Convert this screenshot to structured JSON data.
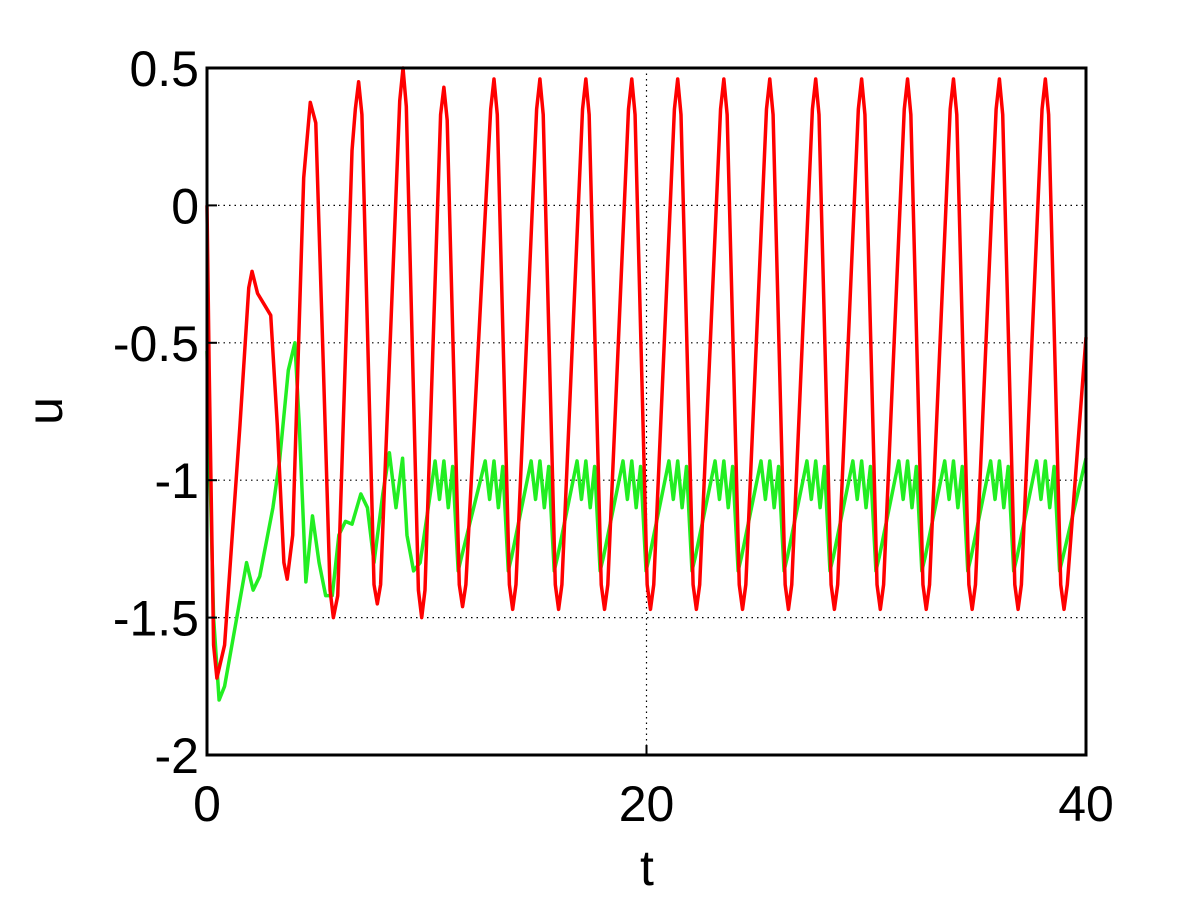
{
  "chart_data": {
    "type": "line",
    "xlabel": "t",
    "ylabel": "u",
    "xlim": [
      0,
      40
    ],
    "ylim": [
      -2,
      0.5
    ],
    "xticks": [
      0,
      20,
      40
    ],
    "yticks": [
      0.5,
      0,
      -0.5,
      -1,
      -1.5,
      -2
    ],
    "grid": true,
    "series": [
      {
        "color": "#ff0000",
        "x": [
          0,
          0.1,
          0.3,
          0.45,
          0.8,
          1.5,
          1.9,
          2.05,
          2.3,
          2.6,
          2.9,
          3.2,
          3.5,
          3.65,
          3.9,
          4.4,
          4.7,
          4.95,
          5.3,
          5.6,
          5.75,
          5.95,
          6.6,
          6.75,
          6.9,
          7.05,
          7.6,
          7.75,
          7.9,
          8.77,
          8.92,
          9.07,
          9.62,
          9.77,
          9.92,
          10.63,
          10.78,
          10.93,
          11.48,
          11.63,
          11.78,
          12.91,
          13.06,
          13.21,
          13.76,
          13.91,
          14.06,
          15.0,
          15.15,
          15.3,
          15.85,
          16.0,
          16.15,
          17.09,
          17.24,
          17.39,
          17.94,
          18.09,
          18.24,
          19.18,
          19.33,
          19.48,
          20.03,
          20.18,
          20.33,
          21.27,
          21.42,
          21.57,
          22.12,
          22.27,
          22.42,
          23.37,
          23.52,
          23.67,
          24.22,
          24.37,
          24.52,
          25.46,
          25.61,
          25.76,
          26.31,
          26.46,
          26.61,
          27.55,
          27.7,
          27.85,
          28.4,
          28.55,
          28.7,
          29.64,
          29.79,
          29.94,
          30.49,
          30.64,
          30.79,
          31.73,
          31.88,
          32.03,
          32.58,
          32.73,
          32.88,
          33.82,
          33.97,
          34.12,
          34.67,
          34.82,
          34.97,
          35.91,
          36.06,
          36.21,
          36.76,
          36.91,
          37.06,
          38.0,
          38.15,
          38.3,
          38.85,
          39.0,
          39.15,
          40
        ],
        "values": [
          0,
          -0.6,
          -1.6,
          -1.72,
          -1.6,
          -0.8,
          -0.3,
          -0.24,
          -0.32,
          -0.36,
          -0.4,
          -0.8,
          -1.3,
          -1.36,
          -1.2,
          0.1,
          0.375,
          0.3,
          -0.6,
          -1.4,
          -1.5,
          -1.42,
          0.2,
          0.35,
          0.45,
          0.33,
          -1.38,
          -1.45,
          -1.38,
          0.38,
          0.5,
          0.36,
          -1.4,
          -1.5,
          -1.4,
          0.33,
          0.43,
          0.31,
          -1.38,
          -1.46,
          -1.38,
          0.35,
          0.46,
          0.33,
          -1.38,
          -1.47,
          -1.38,
          0.35,
          0.46,
          0.33,
          -1.38,
          -1.47,
          -1.38,
          0.35,
          0.46,
          0.33,
          -1.38,
          -1.47,
          -1.38,
          0.35,
          0.46,
          0.33,
          -1.38,
          -1.47,
          -1.38,
          0.35,
          0.46,
          0.33,
          -1.38,
          -1.47,
          -1.38,
          0.35,
          0.46,
          0.33,
          -1.38,
          -1.47,
          -1.38,
          0.35,
          0.46,
          0.33,
          -1.38,
          -1.47,
          -1.38,
          0.35,
          0.46,
          0.33,
          -1.38,
          -1.47,
          -1.38,
          0.35,
          0.46,
          0.33,
          -1.38,
          -1.47,
          -1.38,
          0.35,
          0.46,
          0.33,
          -1.38,
          -1.47,
          -1.38,
          0.35,
          0.46,
          0.33,
          -1.38,
          -1.47,
          -1.38,
          0.35,
          0.46,
          0.33,
          -1.38,
          -1.47,
          -1.38,
          0.35,
          0.46,
          0.33,
          -1.38,
          -1.47,
          -1.38,
          -0.48
        ]
      },
      {
        "color": "#22ee22",
        "x": [
          0,
          0.3,
          0.55,
          0.8,
          1.8,
          2.1,
          2.4,
          3.0,
          3.3,
          3.7,
          4.0,
          4.2,
          4.5,
          4.8,
          5.1,
          5.4,
          5.7,
          6.0,
          6.3,
          6.6,
          7.0,
          7.3,
          7.6,
          8.0,
          8.3,
          8.6,
          8.9,
          9.1,
          9.4,
          9.7,
          10.38,
          10.58,
          10.78,
          10.98,
          11.18,
          11.43,
          11.58,
          12.66,
          12.86,
          13.06,
          13.26,
          13.46,
          13.71,
          13.86,
          14.75,
          14.95,
          15.15,
          15.35,
          15.55,
          15.8,
          15.95,
          16.84,
          17.04,
          17.24,
          17.44,
          17.64,
          17.89,
          18.04,
          18.93,
          19.13,
          19.33,
          19.53,
          19.73,
          19.98,
          20.13,
          21.02,
          21.22,
          21.42,
          21.62,
          21.82,
          22.07,
          22.22,
          23.12,
          23.32,
          23.52,
          23.72,
          23.92,
          24.17,
          24.32,
          25.21,
          25.41,
          25.61,
          25.81,
          26.01,
          26.26,
          26.41,
          27.3,
          27.5,
          27.7,
          27.9,
          28.1,
          28.35,
          28.5,
          29.39,
          29.59,
          29.79,
          29.99,
          30.19,
          30.44,
          30.59,
          31.48,
          31.68,
          31.88,
          32.08,
          32.28,
          32.53,
          32.68,
          33.57,
          33.77,
          33.97,
          34.17,
          34.37,
          34.62,
          34.77,
          35.66,
          35.86,
          36.06,
          36.26,
          36.46,
          36.71,
          36.86,
          37.75,
          37.95,
          38.15,
          38.35,
          38.55,
          38.8,
          38.95,
          40
        ],
        "values": [
          -0.53,
          -1.5,
          -1.8,
          -1.75,
          -1.3,
          -1.4,
          -1.35,
          -1.1,
          -0.93,
          -0.6,
          -0.5,
          -0.8,
          -1.37,
          -1.13,
          -1.3,
          -1.42,
          -1.42,
          -1.2,
          -1.15,
          -1.16,
          -1.05,
          -1.1,
          -1.3,
          -1.05,
          -0.9,
          -1.1,
          -0.92,
          -1.2,
          -1.33,
          -1.3,
          -0.93,
          -1.07,
          -0.93,
          -1.1,
          -0.95,
          -1.33,
          -1.28,
          -0.93,
          -1.07,
          -0.93,
          -1.1,
          -0.95,
          -1.33,
          -1.28,
          -0.93,
          -1.07,
          -0.93,
          -1.1,
          -0.95,
          -1.33,
          -1.28,
          -0.93,
          -1.07,
          -0.93,
          -1.1,
          -0.95,
          -1.33,
          -1.28,
          -0.93,
          -1.07,
          -0.93,
          -1.1,
          -0.95,
          -1.33,
          -1.28,
          -0.93,
          -1.07,
          -0.93,
          -1.1,
          -0.95,
          -1.33,
          -1.28,
          -0.93,
          -1.07,
          -0.93,
          -1.1,
          -0.95,
          -1.33,
          -1.28,
          -0.93,
          -1.07,
          -0.93,
          -1.1,
          -0.95,
          -1.33,
          -1.28,
          -0.93,
          -1.07,
          -0.93,
          -1.1,
          -0.95,
          -1.33,
          -1.28,
          -0.93,
          -1.07,
          -0.93,
          -1.1,
          -0.95,
          -1.33,
          -1.28,
          -0.93,
          -1.07,
          -0.93,
          -1.1,
          -0.95,
          -1.33,
          -1.28,
          -0.93,
          -1.07,
          -0.93,
          -1.1,
          -0.95,
          -1.33,
          -1.28,
          -0.93,
          -1.07,
          -0.93,
          -1.1,
          -0.95,
          -1.33,
          -1.28,
          -0.93,
          -1.07,
          -0.93,
          -1.1,
          -0.95,
          -1.33,
          -1.28,
          -0.92
        ]
      }
    ]
  }
}
